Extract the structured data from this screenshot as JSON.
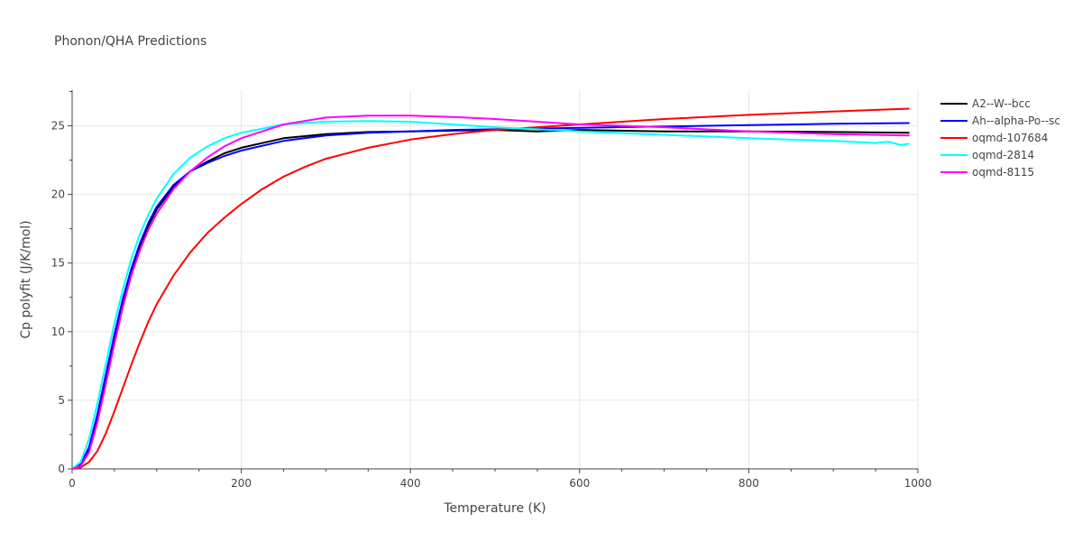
{
  "chart_data": {
    "type": "line",
    "title": "Phonon/QHA Predictions",
    "xlabel": "Temperature (K)",
    "ylabel": "Cp polyfit (J/K/mol)",
    "xlim": [
      0,
      1000
    ],
    "ylim": [
      0,
      27.6
    ],
    "xticks": [
      0,
      200,
      400,
      600,
      800,
      1000
    ],
    "yticks": [
      0,
      5,
      10,
      15,
      20,
      25
    ],
    "grid": true,
    "legend_position": "top-right",
    "series": [
      {
        "name": "A2--W--bcc",
        "color": "#000000",
        "x": [
          0,
          10,
          20,
          30,
          40,
          50,
          60,
          70,
          80,
          90,
          100,
          120,
          140,
          160,
          180,
          200,
          250,
          300,
          350,
          400,
          450,
          500,
          550,
          600,
          700,
          800,
          900,
          990
        ],
        "y": [
          0,
          0.3,
          1.5,
          3.8,
          6.7,
          9.6,
          12.2,
          14.4,
          16.2,
          17.7,
          18.9,
          20.6,
          21.7,
          22.4,
          23.0,
          23.4,
          24.1,
          24.4,
          24.55,
          24.6,
          24.65,
          24.7,
          24.6,
          24.7,
          24.6,
          24.6,
          24.55,
          24.5
        ]
      },
      {
        "name": "Ah--alpha-Po--sc",
        "color": "#0000ff",
        "x": [
          0,
          10,
          20,
          30,
          40,
          50,
          60,
          70,
          80,
          90,
          100,
          120,
          140,
          160,
          180,
          200,
          250,
          300,
          350,
          400,
          450,
          500,
          550,
          600,
          700,
          800,
          900,
          990
        ],
        "y": [
          0,
          0.3,
          1.6,
          4.0,
          6.9,
          9.8,
          12.4,
          14.6,
          16.4,
          17.9,
          19.1,
          20.7,
          21.7,
          22.3,
          22.8,
          23.2,
          23.9,
          24.3,
          24.5,
          24.6,
          24.7,
          24.75,
          24.8,
          24.85,
          24.95,
          25.05,
          25.15,
          25.2
        ]
      },
      {
        "name": "oqmd-107684",
        "color": "#ff0000",
        "x": [
          0,
          10,
          20,
          30,
          40,
          50,
          60,
          70,
          80,
          90,
          100,
          120,
          140,
          160,
          180,
          200,
          225,
          250,
          275,
          300,
          350,
          400,
          450,
          500,
          550,
          600,
          700,
          800,
          900,
          990
        ],
        "y": [
          0,
          0.1,
          0.5,
          1.3,
          2.6,
          4.2,
          5.9,
          7.6,
          9.2,
          10.7,
          12.0,
          14.1,
          15.8,
          17.2,
          18.3,
          19.3,
          20.4,
          21.3,
          22.0,
          22.6,
          23.4,
          24.0,
          24.4,
          24.7,
          24.9,
          25.1,
          25.5,
          25.8,
          26.05,
          26.25
        ]
      },
      {
        "name": "oqmd-2814",
        "color": "#00ffff",
        "x": [
          0,
          10,
          20,
          30,
          40,
          50,
          60,
          70,
          80,
          90,
          100,
          120,
          140,
          160,
          180,
          200,
          250,
          300,
          350,
          400,
          450,
          500,
          550,
          600,
          700,
          800,
          900,
          950,
          965,
          980,
          990
        ],
        "y": [
          0,
          0.5,
          2.2,
          4.8,
          7.7,
          10.6,
          13.1,
          15.3,
          17.1,
          18.5,
          19.7,
          21.5,
          22.7,
          23.5,
          24.1,
          24.5,
          25.1,
          25.3,
          25.35,
          25.3,
          25.1,
          24.9,
          24.75,
          24.6,
          24.35,
          24.1,
          23.9,
          23.75,
          23.85,
          23.6,
          23.7
        ]
      },
      {
        "name": "oqmd-8115",
        "color": "#ff00ff",
        "x": [
          0,
          10,
          20,
          30,
          40,
          50,
          60,
          70,
          80,
          90,
          100,
          120,
          140,
          160,
          180,
          200,
          250,
          300,
          350,
          400,
          450,
          500,
          550,
          600,
          700,
          800,
          900,
          990
        ],
        "y": [
          0,
          0.2,
          1.2,
          3.4,
          6.2,
          9.1,
          11.8,
          14.1,
          15.9,
          17.4,
          18.6,
          20.4,
          21.7,
          22.7,
          23.5,
          24.1,
          25.1,
          25.6,
          25.75,
          25.75,
          25.65,
          25.5,
          25.3,
          25.1,
          24.9,
          24.6,
          24.4,
          24.3
        ]
      }
    ]
  }
}
